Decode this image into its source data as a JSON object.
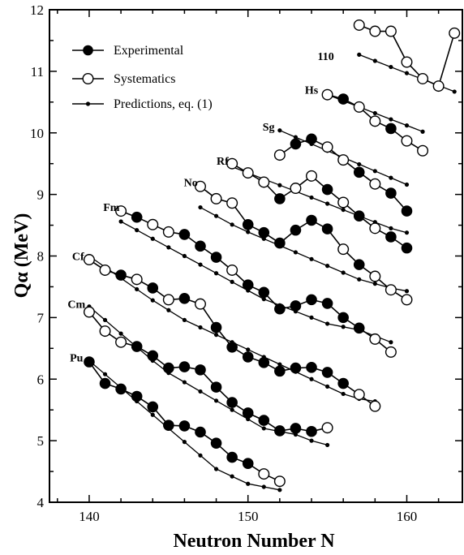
{
  "chart_data": {
    "type": "line",
    "title": "",
    "xlabel": "Neutron Number N",
    "ylabel": "Qα (MeV)",
    "xlim": [
      137.5,
      163.5
    ],
    "ylim": [
      4,
      12
    ],
    "xticks": [
      140,
      150,
      160
    ],
    "yticks": [
      4,
      5,
      6,
      7,
      8,
      9,
      10,
      11,
      12
    ],
    "legend": {
      "position": "top-left",
      "entries": [
        {
          "label": "Experimental",
          "marker": "filled-circle"
        },
        {
          "label": "Systematics",
          "marker": "open-circle"
        },
        {
          "label": "Predictions, eq. (1)",
          "marker": "small-dot"
        }
      ]
    },
    "series": [
      {
        "name": "Pu",
        "label_at": [
          139.2,
          6.35
        ],
        "experimental": [
          [
            140,
            6.28
          ],
          [
            141,
            5.93
          ],
          [
            142,
            5.84
          ],
          [
            143,
            5.72
          ],
          [
            144,
            5.55
          ],
          [
            145,
            5.25
          ],
          [
            146,
            5.24
          ],
          [
            147,
            5.14
          ],
          [
            148,
            4.96
          ],
          [
            149,
            4.73
          ],
          [
            150,
            4.63
          ]
        ],
        "systematics": [
          [
            151,
            4.46
          ],
          [
            152,
            4.34
          ]
        ],
        "predictions": [
          [
            140,
            6.3
          ],
          [
            141,
            6.08
          ],
          [
            142,
            5.86
          ],
          [
            143,
            5.64
          ],
          [
            144,
            5.42
          ],
          [
            145,
            5.2
          ],
          [
            146,
            4.98
          ],
          [
            147,
            4.76
          ],
          [
            148,
            4.54
          ],
          [
            149,
            4.42
          ],
          [
            150,
            4.3
          ],
          [
            151,
            4.25
          ],
          [
            152,
            4.2
          ]
        ]
      },
      {
        "name": "Cm",
        "label_at": [
          139.2,
          7.22
        ],
        "experimental": [
          [
            143,
            6.53
          ],
          [
            144,
            6.38
          ],
          [
            145,
            6.18
          ],
          [
            146,
            6.2
          ],
          [
            147,
            6.15
          ],
          [
            148,
            5.87
          ],
          [
            149,
            5.62
          ],
          [
            150,
            5.45
          ],
          [
            151,
            5.33
          ],
          [
            152,
            5.16
          ],
          [
            153,
            5.2
          ],
          [
            154,
            5.15
          ]
        ],
        "systematics": [
          [
            140,
            7.09
          ],
          [
            141,
            6.78
          ],
          [
            142,
            6.6
          ],
          [
            155,
            5.21
          ]
        ],
        "predictions": [
          [
            140,
            7.18
          ],
          [
            141,
            6.96
          ],
          [
            142,
            6.74
          ],
          [
            143,
            6.52
          ],
          [
            144,
            6.3
          ],
          [
            145,
            6.1
          ],
          [
            146,
            5.95
          ],
          [
            147,
            5.8
          ],
          [
            148,
            5.65
          ],
          [
            149,
            5.5
          ],
          [
            150,
            5.35
          ],
          [
            151,
            5.2
          ],
          [
            152,
            5.15
          ],
          [
            153,
            5.1
          ],
          [
            154,
            5.0
          ],
          [
            155,
            4.93
          ]
        ]
      },
      {
        "name": "Cf",
        "label_at": [
          139.3,
          8.0
        ],
        "experimental": [
          [
            142,
            7.69
          ],
          [
            144,
            7.48
          ],
          [
            146,
            7.31
          ],
          [
            148,
            6.84
          ],
          [
            149,
            6.52
          ],
          [
            150,
            6.36
          ],
          [
            151,
            6.27
          ],
          [
            152,
            6.13
          ],
          [
            153,
            6.18
          ],
          [
            154,
            6.19
          ],
          [
            155,
            6.11
          ],
          [
            156,
            5.93
          ]
        ],
        "systematics": [
          [
            140,
            7.94
          ],
          [
            141,
            7.77
          ],
          [
            143,
            7.62
          ],
          [
            145,
            7.29
          ],
          [
            147,
            7.22
          ],
          [
            157,
            5.75
          ],
          [
            158,
            5.56
          ]
        ],
        "predictions": [
          [
            140,
            8.0
          ],
          [
            141,
            7.82
          ],
          [
            142,
            7.64
          ],
          [
            143,
            7.46
          ],
          [
            144,
            7.28
          ],
          [
            145,
            7.12
          ],
          [
            146,
            6.96
          ],
          [
            147,
            6.84
          ],
          [
            148,
            6.72
          ],
          [
            149,
            6.6
          ],
          [
            150,
            6.48
          ],
          [
            151,
            6.36
          ],
          [
            152,
            6.24
          ],
          [
            153,
            6.12
          ],
          [
            154,
            6.0
          ],
          [
            155,
            5.88
          ],
          [
            156,
            5.76
          ],
          [
            157,
            5.68
          ],
          [
            158,
            5.64
          ]
        ]
      },
      {
        "name": "Fm",
        "label_at": [
          141.4,
          8.8
        ],
        "experimental": [
          [
            143,
            8.63
          ],
          [
            146,
            8.35
          ],
          [
            147,
            8.16
          ],
          [
            148,
            7.98
          ],
          [
            150,
            7.53
          ],
          [
            151,
            7.41
          ],
          [
            152,
            7.14
          ],
          [
            153,
            7.19
          ],
          [
            154,
            7.29
          ],
          [
            155,
            7.23
          ],
          [
            156,
            7.0
          ],
          [
            157,
            6.83
          ]
        ],
        "systematics": [
          [
            142,
            8.73
          ],
          [
            144,
            8.51
          ],
          [
            145,
            8.39
          ],
          [
            149,
            7.77
          ],
          [
            158,
            6.65
          ],
          [
            159,
            6.44
          ]
        ],
        "predictions": [
          [
            142,
            8.56
          ],
          [
            143,
            8.42
          ],
          [
            144,
            8.28
          ],
          [
            145,
            8.14
          ],
          [
            146,
            8.0
          ],
          [
            147,
            7.86
          ],
          [
            148,
            7.72
          ],
          [
            149,
            7.58
          ],
          [
            150,
            7.44
          ],
          [
            151,
            7.3
          ],
          [
            152,
            7.2
          ],
          [
            153,
            7.1
          ],
          [
            154,
            7.0
          ],
          [
            155,
            6.9
          ],
          [
            156,
            6.85
          ],
          [
            157,
            6.8
          ],
          [
            158,
            6.7
          ],
          [
            159,
            6.6
          ]
        ]
      },
      {
        "name": "No",
        "label_at": [
          146.4,
          9.2
        ],
        "experimental": [
          [
            150,
            8.51
          ],
          [
            151,
            8.38
          ],
          [
            152,
            8.21
          ],
          [
            153,
            8.42
          ],
          [
            154,
            8.58
          ],
          [
            155,
            8.44
          ],
          [
            157,
            7.86
          ]
        ],
        "systematics": [
          [
            147,
            9.13
          ],
          [
            148,
            8.93
          ],
          [
            149,
            8.86
          ],
          [
            156,
            8.11
          ],
          [
            158,
            7.67
          ],
          [
            159,
            7.45
          ],
          [
            160,
            7.29
          ]
        ],
        "predictions": [
          [
            147,
            8.79
          ],
          [
            148,
            8.65
          ],
          [
            149,
            8.51
          ],
          [
            150,
            8.39
          ],
          [
            151,
            8.28
          ],
          [
            152,
            8.17
          ],
          [
            153,
            8.06
          ],
          [
            154,
            7.95
          ],
          [
            155,
            7.84
          ],
          [
            156,
            7.73
          ],
          [
            157,
            7.62
          ],
          [
            158,
            7.55
          ],
          [
            159,
            7.48
          ],
          [
            160,
            7.43
          ]
        ]
      },
      {
        "name": "Rf",
        "label_at": [
          148.4,
          9.55
        ],
        "experimental": [
          [
            152,
            8.93
          ],
          [
            155,
            9.08
          ],
          [
            157,
            8.65
          ],
          [
            159,
            8.31
          ],
          [
            160,
            8.13
          ]
        ],
        "systematics": [
          [
            149,
            9.5
          ],
          [
            150,
            9.35
          ],
          [
            151,
            9.2
          ],
          [
            153,
            9.1
          ],
          [
            154,
            9.3
          ],
          [
            156,
            8.87
          ],
          [
            158,
            8.45
          ]
        ],
        "predictions": [
          [
            149,
            9.45
          ],
          [
            150,
            9.35
          ],
          [
            151,
            9.25
          ],
          [
            152,
            9.15
          ],
          [
            153,
            9.05
          ],
          [
            154,
            8.95
          ],
          [
            155,
            8.85
          ],
          [
            156,
            8.75
          ],
          [
            157,
            8.65
          ],
          [
            158,
            8.55
          ],
          [
            159,
            8.45
          ],
          [
            160,
            8.38
          ]
        ]
      },
      {
        "name": "Sg",
        "label_at": [
          151.3,
          10.1
        ],
        "experimental": [
          [
            153,
            9.82
          ],
          [
            154,
            9.9
          ],
          [
            157,
            9.36
          ],
          [
            159,
            9.02
          ],
          [
            160,
            8.73
          ]
        ],
        "systematics": [
          [
            152,
            9.64
          ],
          [
            155,
            9.77
          ],
          [
            156,
            9.56
          ],
          [
            158,
            9.17
          ]
        ],
        "predictions": [
          [
            152,
            10.04
          ],
          [
            153,
            9.93
          ],
          [
            154,
            9.82
          ],
          [
            155,
            9.71
          ],
          [
            156,
            9.6
          ],
          [
            157,
            9.49
          ],
          [
            158,
            9.38
          ],
          [
            159,
            9.27
          ],
          [
            160,
            9.16
          ]
        ]
      },
      {
        "name": "Hs",
        "label_at": [
          154.0,
          10.7
        ],
        "experimental": [
          [
            156,
            10.55
          ],
          [
            159,
            10.07
          ]
        ],
        "systematics": [
          [
            155,
            10.62
          ],
          [
            157,
            10.42
          ],
          [
            158,
            10.19
          ],
          [
            160,
            9.87
          ],
          [
            161,
            9.71
          ]
        ],
        "predictions": [
          [
            155,
            10.62
          ],
          [
            156,
            10.52
          ],
          [
            157,
            10.42
          ],
          [
            158,
            10.32
          ],
          [
            159,
            10.22
          ],
          [
            160,
            10.12
          ],
          [
            161,
            10.02
          ]
        ]
      },
      {
        "name": "110",
        "label_at": [
          154.9,
          11.25
        ],
        "experimental": [],
        "systematics": [
          [
            157,
            11.75
          ],
          [
            158,
            11.65
          ],
          [
            159,
            11.65
          ],
          [
            160,
            11.15
          ],
          [
            161,
            10.88
          ],
          [
            162,
            10.76
          ],
          [
            163,
            11.62
          ]
        ],
        "predictions": [
          [
            157,
            11.27
          ],
          [
            158,
            11.17
          ],
          [
            159,
            11.07
          ],
          [
            160,
            10.97
          ],
          [
            161,
            10.87
          ],
          [
            162,
            10.77
          ],
          [
            163,
            10.67
          ]
        ]
      }
    ]
  }
}
